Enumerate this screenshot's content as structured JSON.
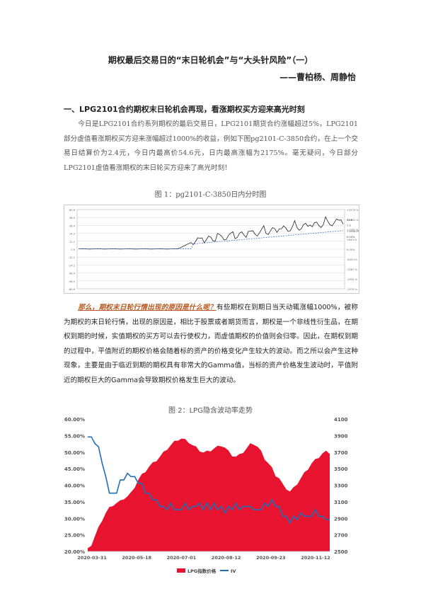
{
  "doc": {
    "title": "期权最后交易日的“末日轮机会”与“大头针风险”（一）",
    "author": "——曹柏杨、周静怡",
    "section1_heading": "一、LPG2101合约期权末日轮机会再现，看涨期权买方迎来高光时刻",
    "para1": "今日是LPG2101合约系列期权的最后交易日，LPG2101期货合约涨幅超过5%，LPG2101部分虚值看涨期权买方迎来涨幅超过1000%的收益，例如下图pg2101-C-3850合约，在上一个交易日结算价为2.4元，今日内最高价54.6元，日内最高涨幅为2175%。毫无疑问，今日部分LPG2101虚值看涨期权的末日轮买方迎来了高光时刻！",
    "figure1_caption": "图 1：pg2101-C-3850日内分时图",
    "para2_highlight": "那么，期权末日轮行情出现的原因是什么呢？",
    "para2_rest": "有些期权在到期日当天动辄涨幅1000%，被称为期权的末日轮行情，出现的原因是，相比于股票或者期货而言，期权是一个非线性衍生品，在期权到期的时候，实值期权的买方可以去行使权力，而虚值期权的价值则会归零。因此，在期权到期的过程中，平值附近的期权价格会随着标的资产的价格变化产生较大的波动。而之所以会产生这种现象，主要是由于临近到期的期权具有非常大的Gamma值，当标的资产价格发生波动时，平值附近的期权巨大的Gamma会导致期权价格发生巨大的波动。",
    "figure2_caption": "图 2：LPG隐含波动率走势"
  },
  "fig1": {
    "left_ticks": [
      "60.6",
      "48.5",
      "36.4",
      "24.2",
      "12.1",
      "0.0",
      "-12.1",
      "-24.2",
      "-36.4",
      "-48.5",
      "-60.6"
    ],
    "right_ticks": [
      "+2575.%",
      "+1931.%",
      "+1287.%",
      "+643.%",
      "0.00%",
      "-643.1%",
      "-1287.%",
      "-1931.%",
      "-2575.%"
    ],
    "right_labels": [
      "54.6",
      "7.3",
      "+1444.0%",
      "0.00%"
    ],
    "colors": {
      "price": "#222222",
      "avg": "#4a78c8",
      "grid": "#d8d8d8"
    }
  },
  "chart_data": {
    "type": "area",
    "title": "",
    "x_ticks": [
      "2020-03-31",
      "2020-05-18",
      "2020-07-01",
      "2020-08-12",
      "2020-09-23",
      "2020-11-12"
    ],
    "y_left_ticks": [
      "60.00%",
      "55.00%",
      "50.00%",
      "45.00%",
      "40.00%",
      "35.00%",
      "30.00%",
      "25.00%",
      "20.00%"
    ],
    "y_right_ticks": [
      "4100",
      "3900",
      "3700",
      "3500",
      "3300",
      "3100",
      "2900",
      "2700",
      "2500"
    ],
    "ylim_left": [
      0.2,
      0.6
    ],
    "ylim_right": [
      2500,
      4100
    ],
    "legend": "bottom-center",
    "series": [
      {
        "name": "LPG指数价格",
        "axis": "right",
        "color": "#e8132e",
        "values": [
          2520,
          2580,
          2680,
          2780,
          2880,
          2960,
          3020,
          3060,
          3080,
          3100,
          3140,
          3160,
          3200,
          3280,
          3360,
          3420,
          3470,
          3520,
          3560,
          3600,
          3640,
          3690,
          3740,
          3780,
          3820,
          3850,
          3860,
          3840,
          3820,
          3780,
          3750,
          3720,
          3690,
          3700,
          3720,
          3740,
          3760,
          3780,
          3750,
          3700,
          3660,
          3640,
          3660,
          3700,
          3740,
          3790,
          3800,
          3760,
          3700,
          3620,
          3560,
          3500,
          3420,
          3380,
          3300,
          3260,
          3220,
          3260,
          3320,
          3380,
          3440,
          3500,
          3560,
          3600,
          3640,
          3680,
          3700,
          3690
        ]
      },
      {
        "name": "IV",
        "axis": "left",
        "color": "#1f6fb8",
        "values": [
          0.55,
          0.54,
          0.53,
          0.51,
          0.47,
          0.42,
          0.38,
          0.37,
          0.38,
          0.41,
          0.42,
          0.43,
          0.43,
          0.42,
          0.41,
          0.4,
          0.38,
          0.37,
          0.36,
          0.35,
          0.34,
          0.33,
          0.33,
          0.34,
          0.33,
          0.32,
          0.33,
          0.34,
          0.33,
          0.33,
          0.34,
          0.34,
          0.33,
          0.34,
          0.33,
          0.34,
          0.33,
          0.33,
          0.32,
          0.33,
          0.33,
          0.34,
          0.33,
          0.33,
          0.34,
          0.33,
          0.33,
          0.32,
          0.33,
          0.34,
          0.34,
          0.35,
          0.34,
          0.33,
          0.31,
          0.3,
          0.29,
          0.3,
          0.3,
          0.31,
          0.31,
          0.3,
          0.31,
          0.32,
          0.31,
          0.3,
          0.3,
          0.29
        ]
      }
    ]
  }
}
